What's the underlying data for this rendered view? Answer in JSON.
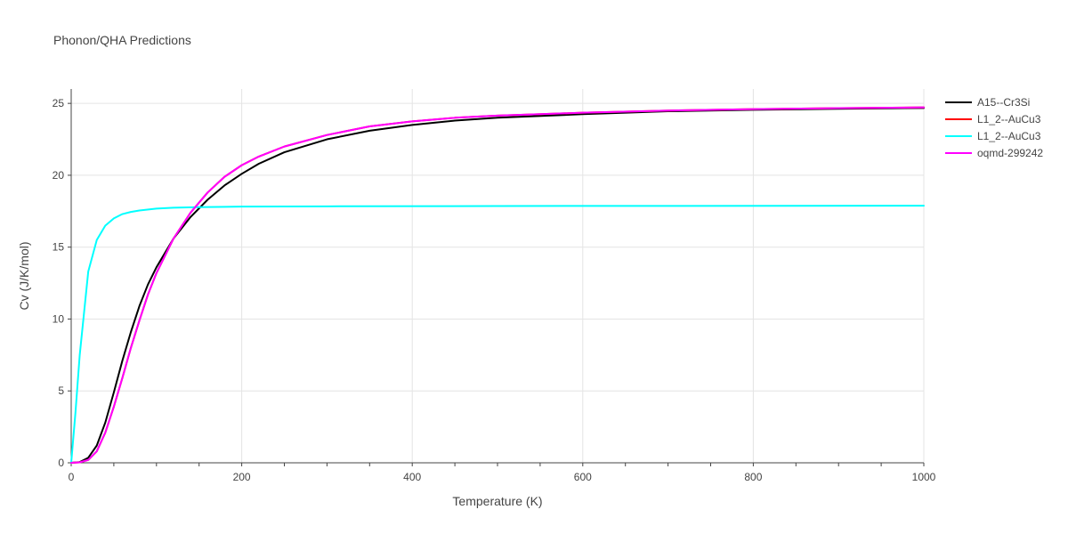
{
  "chart_data": {
    "type": "line",
    "title": "Phonon/QHA Predictions",
    "xlabel": "Temperature (K)",
    "ylabel": "Cv (J/K/mol)",
    "xlim": [
      0,
      1000
    ],
    "ylim": [
      0,
      26
    ],
    "xticks": [
      0,
      200,
      400,
      600,
      800,
      1000
    ],
    "yticks": [
      0,
      5,
      10,
      15,
      20,
      25
    ],
    "grid": true,
    "legend_position": "top-right",
    "series": [
      {
        "name": "A15--Cr3Si",
        "color": "#000000",
        "x": [
          0,
          10,
          20,
          30,
          40,
          50,
          60,
          70,
          80,
          90,
          100,
          120,
          140,
          160,
          180,
          200,
          220,
          250,
          300,
          350,
          400,
          450,
          500,
          600,
          700,
          800,
          900,
          1000
        ],
        "y": [
          0,
          0.05,
          0.35,
          1.2,
          2.8,
          4.9,
          7.1,
          9.1,
          10.9,
          12.4,
          13.6,
          15.6,
          17.1,
          18.3,
          19.3,
          20.1,
          20.8,
          21.6,
          22.5,
          23.1,
          23.5,
          23.8,
          24.0,
          24.25,
          24.45,
          24.55,
          24.62,
          24.68
        ]
      },
      {
        "name": "L1_2--AuCu3",
        "color": "#ff0000",
        "x": [
          0,
          10,
          20,
          30,
          40,
          50,
          60,
          70,
          80,
          90,
          100,
          120,
          140,
          160,
          180,
          200,
          220,
          250,
          300,
          350,
          400,
          450,
          500,
          600,
          700,
          800,
          900,
          1000
        ],
        "y": [
          0,
          0.03,
          0.2,
          0.8,
          2.1,
          3.9,
          5.9,
          8.0,
          9.9,
          11.7,
          13.2,
          15.6,
          17.4,
          18.8,
          19.9,
          20.7,
          21.3,
          22.0,
          22.8,
          23.4,
          23.75,
          24.0,
          24.15,
          24.35,
          24.5,
          24.6,
          24.67,
          24.72
        ]
      },
      {
        "name": "L1_2--AuCu3",
        "color": "#00ffff",
        "x": [
          0,
          5,
          10,
          20,
          30,
          40,
          50,
          60,
          70,
          80,
          100,
          120,
          150,
          200,
          300,
          500,
          700,
          1000
        ],
        "y": [
          0,
          3.5,
          7.5,
          13.3,
          15.5,
          16.5,
          17.0,
          17.3,
          17.45,
          17.55,
          17.68,
          17.74,
          17.78,
          17.82,
          17.84,
          17.86,
          17.87,
          17.88
        ]
      },
      {
        "name": "oqmd-299242",
        "color": "#ff00ff",
        "x": [
          0,
          10,
          20,
          30,
          40,
          50,
          60,
          70,
          80,
          90,
          100,
          120,
          140,
          160,
          180,
          200,
          220,
          250,
          300,
          350,
          400,
          450,
          500,
          600,
          700,
          800,
          900,
          1000
        ],
        "y": [
          0,
          0.03,
          0.2,
          0.8,
          2.1,
          3.9,
          5.9,
          8.0,
          9.9,
          11.7,
          13.2,
          15.6,
          17.4,
          18.8,
          19.9,
          20.7,
          21.3,
          22.0,
          22.8,
          23.4,
          23.75,
          24.0,
          24.15,
          24.35,
          24.5,
          24.6,
          24.67,
          24.72
        ]
      }
    ]
  }
}
